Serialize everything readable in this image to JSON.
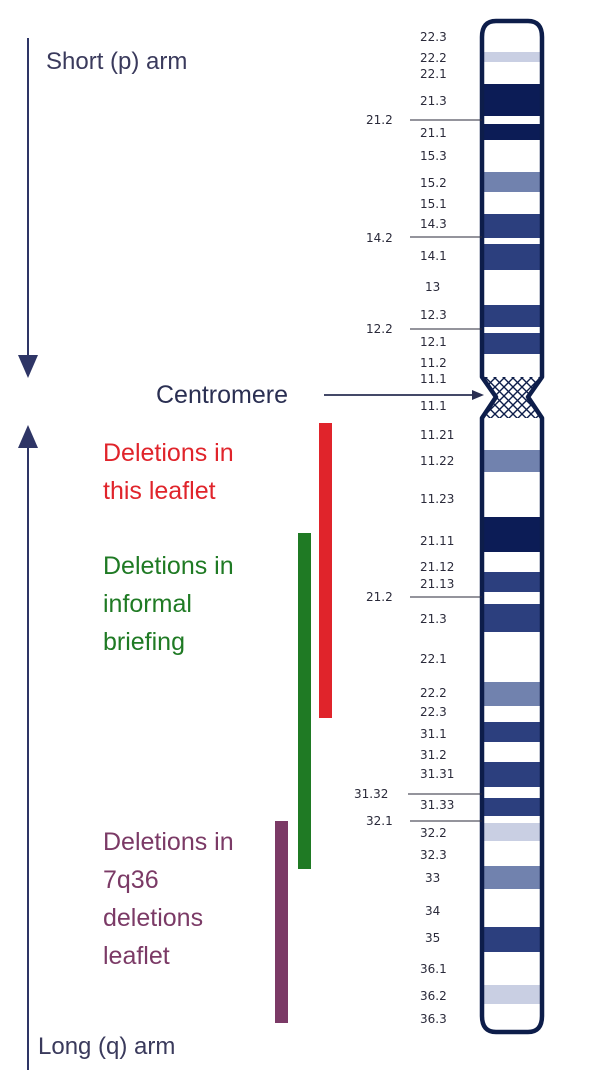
{
  "arms": {
    "short_label": "Short (p) arm",
    "long_label": "Long (q) arm"
  },
  "centromere": {
    "label": "Centromere"
  },
  "deletions": [
    {
      "lines": [
        "Deletions in",
        "this leaflet"
      ],
      "color": "#e0242b"
    },
    {
      "lines": [
        "Deletions in",
        "informal",
        "briefing"
      ],
      "color": "#1f7a24"
    },
    {
      "lines": [
        "Deletions in",
        "7q36",
        "deletions",
        "leaflet"
      ],
      "color": "#7b3a66"
    }
  ],
  "colors": {
    "axis": "#2e3566",
    "chrom_outline": "#0d1d4a",
    "band_dark": "#0c1c56",
    "band_mid": "#2c3f7e",
    "band_light": "#7182ae",
    "band_pale": "#c9cfe3"
  },
  "p_arm_bands": [
    {
      "label": "22.3"
    },
    {
      "label": "22.2",
      "stain": "pale"
    },
    {
      "label": "22.1"
    },
    {
      "label": "21.3",
      "stain": "dark"
    },
    {
      "label": "21.2"
    },
    {
      "label": "21.1",
      "stain": "dark"
    },
    {
      "label": "15.3"
    },
    {
      "label": "15.2",
      "stain": "light"
    },
    {
      "label": "15.1"
    },
    {
      "label": "14.3",
      "stain": "mid"
    },
    {
      "label": "14.2"
    },
    {
      "label": "14.1",
      "stain": "mid"
    },
    {
      "label": "13"
    },
    {
      "label": "12.3",
      "stain": "mid"
    },
    {
      "label": "12.2"
    },
    {
      "label": "12.1",
      "stain": "mid"
    },
    {
      "label": "11.2"
    },
    {
      "label": "11.1"
    }
  ],
  "q_arm_bands": [
    {
      "label": "11.1"
    },
    {
      "label": "11.21"
    },
    {
      "label": "11.22",
      "stain": "light"
    },
    {
      "label": "11.23"
    },
    {
      "label": "21.11",
      "stain": "dark"
    },
    {
      "label": "21.12"
    },
    {
      "label": "21.13",
      "stain": "mid"
    },
    {
      "label": "21.2"
    },
    {
      "label": "21.3",
      "stain": "mid"
    },
    {
      "label": "22.1"
    },
    {
      "label": "22.2",
      "stain": "light"
    },
    {
      "label": "22.3"
    },
    {
      "label": "31.1",
      "stain": "mid"
    },
    {
      "label": "31.2"
    },
    {
      "label": "31.31",
      "stain": "mid"
    },
    {
      "label": "31.32"
    },
    {
      "label": "31.33",
      "stain": "mid"
    },
    {
      "label": "32.1"
    },
    {
      "label": "32.2",
      "stain": "pale"
    },
    {
      "label": "32.3"
    },
    {
      "label": "33",
      "stain": "light"
    },
    {
      "label": "34"
    },
    {
      "label": "35",
      "stain": "mid"
    },
    {
      "label": "36.1"
    },
    {
      "label": "36.2",
      "stain": "pale"
    },
    {
      "label": "36.3"
    }
  ]
}
